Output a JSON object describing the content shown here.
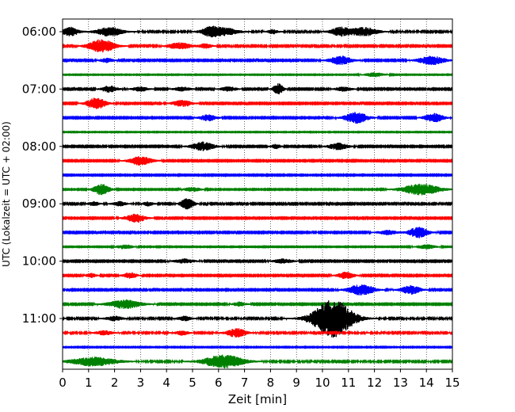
{
  "chart_data": {
    "type": "line",
    "title": "",
    "xlabel": "Zeit  [min]",
    "ylabel": "UTC (Lokalzeit = UTC + 02:00)",
    "xlim": [
      0,
      15
    ],
    "x_ticks": [
      "0",
      "1",
      "2",
      "3",
      "4",
      "5",
      "6",
      "7",
      "8",
      "9",
      "10",
      "11",
      "12",
      "13",
      "14",
      "15"
    ],
    "y_ticks": [
      "06:00",
      "07:00",
      "08:00",
      "09:00",
      "10:00",
      "11:00"
    ],
    "grid": "vertical dotted lines at each minute",
    "legend": "none",
    "trace_interval_min": 15,
    "trace_colors": [
      "#000000",
      "#ff0000",
      "#0000ff",
      "#008000"
    ],
    "series": [
      {
        "start": "05:45",
        "color": "black",
        "noise": 0.14,
        "events": [
          [
            0.3,
            0.5,
            4
          ],
          [
            1.8,
            0.8,
            4
          ],
          [
            5.7,
            0.6,
            4
          ],
          [
            6.3,
            0.8,
            3
          ],
          [
            8.1,
            0.3,
            2
          ],
          [
            10.7,
            0.6,
            4
          ],
          [
            11.6,
            0.8,
            4
          ]
        ]
      },
      {
        "start": "06:00",
        "color": "red",
        "noise": 0.13,
        "events": [
          [
            1.5,
            0.8,
            6
          ],
          [
            4.5,
            0.7,
            3
          ],
          [
            5.5,
            0.4,
            2
          ]
        ]
      },
      {
        "start": "06:15",
        "color": "blue",
        "noise": 0.12,
        "events": [
          [
            1.7,
            0.4,
            2
          ],
          [
            10.7,
            0.7,
            4
          ],
          [
            14.2,
            0.8,
            4
          ]
        ]
      },
      {
        "start": "06:30",
        "color": "green",
        "noise": 0.08,
        "events": [
          [
            12.0,
            0.6,
            2
          ]
        ]
      },
      {
        "start": "06:45",
        "color": "black",
        "noise": 0.12,
        "events": [
          [
            1.8,
            0.5,
            3
          ],
          [
            3.0,
            0.5,
            2
          ],
          [
            4.6,
            0.5,
            2
          ],
          [
            6.4,
            0.5,
            2
          ],
          [
            8.3,
            0.3,
            5
          ],
          [
            10.8,
            0.5,
            2
          ]
        ]
      },
      {
        "start": "07:00",
        "color": "red",
        "noise": 0.12,
        "events": [
          [
            1.3,
            0.6,
            5
          ],
          [
            4.6,
            0.6,
            3
          ]
        ]
      },
      {
        "start": "07:15",
        "color": "blue",
        "noise": 0.12,
        "events": [
          [
            5.6,
            0.5,
            3
          ],
          [
            11.3,
            0.7,
            5
          ],
          [
            14.3,
            0.6,
            4
          ]
        ]
      },
      {
        "start": "07:30",
        "color": "green",
        "noise": 0.08,
        "events": []
      },
      {
        "start": "07:45",
        "color": "black",
        "noise": 0.12,
        "events": [
          [
            5.4,
            0.7,
            4
          ],
          [
            8.2,
            0.3,
            2
          ],
          [
            10.6,
            0.6,
            3
          ]
        ]
      },
      {
        "start": "08:00",
        "color": "red",
        "noise": 0.12,
        "events": [
          [
            3.0,
            0.7,
            4
          ]
        ]
      },
      {
        "start": "08:15",
        "color": "blue",
        "noise": 0.11,
        "events": []
      },
      {
        "start": "08:30",
        "color": "green",
        "noise": 0.1,
        "events": [
          [
            1.5,
            0.5,
            5
          ],
          [
            5.0,
            0.5,
            2
          ],
          [
            13.8,
            1.2,
            5
          ]
        ]
      },
      {
        "start": "08:45",
        "color": "black",
        "noise": 0.13,
        "events": [
          [
            1.2,
            0.3,
            2
          ],
          [
            2.2,
            0.4,
            2
          ],
          [
            3.3,
            0.3,
            2
          ],
          [
            4.8,
            0.4,
            5
          ]
        ]
      },
      {
        "start": "09:00",
        "color": "red",
        "noise": 0.12,
        "events": [
          [
            2.8,
            0.6,
            4
          ]
        ]
      },
      {
        "start": "09:15",
        "color": "blue",
        "noise": 0.12,
        "events": [
          [
            12.5,
            0.6,
            2
          ],
          [
            13.7,
            0.6,
            5
          ]
        ]
      },
      {
        "start": "09:30",
        "color": "green",
        "noise": 0.09,
        "events": [
          [
            2.4,
            0.5,
            2
          ],
          [
            14.0,
            0.6,
            2
          ]
        ]
      },
      {
        "start": "09:45",
        "color": "black",
        "noise": 0.12,
        "events": [
          [
            4.7,
            0.6,
            2
          ],
          [
            8.5,
            0.6,
            2
          ]
        ]
      },
      {
        "start": "10:00",
        "color": "red",
        "noise": 0.12,
        "events": [
          [
            1.1,
            0.3,
            2
          ],
          [
            2.6,
            0.4,
            3
          ],
          [
            10.9,
            0.5,
            3
          ]
        ]
      },
      {
        "start": "10:15",
        "color": "blue",
        "noise": 0.12,
        "events": [
          [
            11.5,
            0.8,
            5
          ],
          [
            13.4,
            0.6,
            4
          ]
        ]
      },
      {
        "start": "10:30",
        "color": "green",
        "noise": 0.12,
        "events": [
          [
            2.4,
            1.0,
            4
          ],
          [
            6.8,
            0.4,
            2
          ]
        ]
      },
      {
        "start": "10:45",
        "color": "black",
        "noise": 0.14,
        "events": [
          [
            2.0,
            0.5,
            2
          ],
          [
            4.7,
            0.4,
            2
          ],
          [
            10.4,
            1.2,
            17
          ]
        ]
      },
      {
        "start": "11:00",
        "color": "red",
        "noise": 0.14,
        "events": [
          [
            1.6,
            0.5,
            2
          ],
          [
            4.6,
            0.4,
            2
          ],
          [
            6.7,
            0.6,
            4
          ]
        ]
      },
      {
        "start": "11:15",
        "color": "blue",
        "noise": 0.09,
        "events": []
      },
      {
        "start": "11:30",
        "color": "green",
        "noise": 0.14,
        "events": [
          [
            1.2,
            1.4,
            4
          ],
          [
            6.2,
            1.2,
            6
          ]
        ]
      }
    ]
  }
}
